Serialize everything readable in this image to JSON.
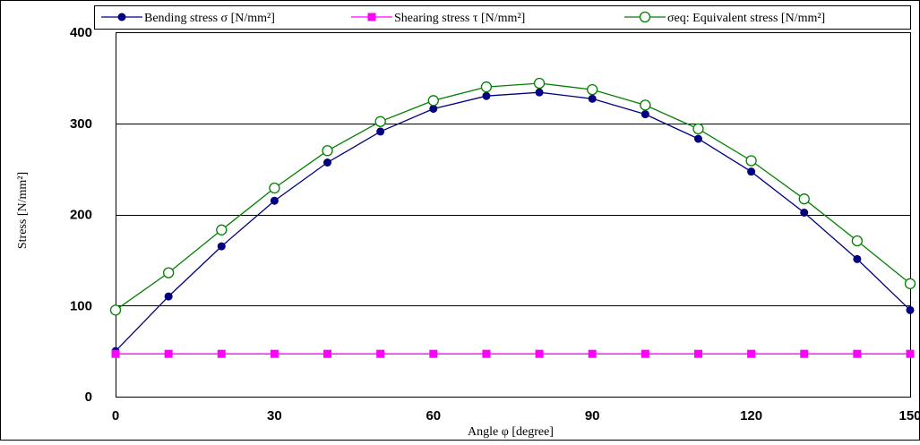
{
  "chart_data": {
    "type": "line",
    "title": "",
    "xlabel": "Angle φ [degree]",
    "ylabel": "Stress [N/mm²]",
    "xlim": [
      0,
      150
    ],
    "ylim": [
      0,
      400
    ],
    "x_ticks": [
      0,
      30,
      60,
      90,
      120,
      150
    ],
    "y_ticks": [
      0,
      100,
      200,
      300,
      400
    ],
    "grid": "horizontal",
    "legend_position": "top",
    "x": [
      0,
      10,
      20,
      30,
      40,
      50,
      60,
      70,
      80,
      90,
      100,
      110,
      120,
      130,
      140,
      150
    ],
    "series": [
      {
        "name": "Bending stress σ [N/mm²]",
        "color": "#000080",
        "marker": "filled-circle",
        "values": [
          50,
          110,
          165,
          215,
          257,
          291,
          316,
          330,
          334,
          327,
          310,
          283,
          247,
          202,
          151,
          95
        ]
      },
      {
        "name": "Shearing stress τ [N/mm²]",
        "color": "#ff00ff",
        "marker": "filled-square",
        "values": [
          47,
          47,
          47,
          47,
          47,
          47,
          47,
          47,
          47,
          47,
          47,
          47,
          47,
          47,
          47,
          47
        ]
      },
      {
        "name": "σeq: Equivalent stress [N/mm²]",
        "color": "#008000",
        "marker": "open-circle",
        "values": [
          95,
          136,
          183,
          229,
          270,
          302,
          325,
          340,
          344,
          337,
          320,
          294,
          259,
          217,
          171,
          124
        ]
      }
    ]
  }
}
